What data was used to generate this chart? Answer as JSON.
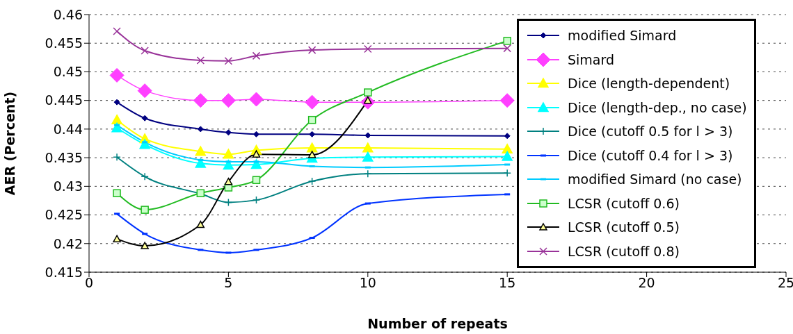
{
  "chart_data": {
    "type": "line",
    "xlabel": "Number of repeats",
    "ylabel": "AER (Percent)",
    "x": [
      1,
      2,
      4,
      5,
      6,
      8,
      10,
      15
    ],
    "xlim": [
      0,
      25
    ],
    "xticks": [
      0,
      5,
      10,
      15,
      20,
      25
    ],
    "ylim": [
      0.415,
      0.46
    ],
    "yticks": [
      0.415,
      0.42,
      0.425,
      0.43,
      0.435,
      0.44,
      0.445,
      0.45,
      0.455,
      0.46
    ],
    "grid": "y",
    "legend": "right",
    "line_style": "solid",
    "series": [
      {
        "name": "modified Simard",
        "color": "#000080",
        "marker": "diamond",
        "values": [
          0.4447,
          0.4419,
          0.44,
          0.4394,
          0.4391,
          0.4391,
          0.4389,
          0.4388
        ]
      },
      {
        "name": "Simard",
        "color": "#ff40ff",
        "marker": "diamond",
        "values": [
          0.4494,
          0.4467,
          0.445,
          0.445,
          0.4452,
          0.4447,
          0.4447,
          0.445
        ]
      },
      {
        "name": "Dice (length-dependent)",
        "color": "#ffff00",
        "marker": "triangle",
        "values": [
          0.4416,
          0.4383,
          0.4361,
          0.4356,
          0.4363,
          0.4367,
          0.4367,
          0.4365
        ]
      },
      {
        "name": "Dice (length-dep., no case)",
        "color": "#00ffff",
        "marker": "triangle",
        "values": [
          0.4402,
          0.4373,
          0.434,
          0.4337,
          0.4338,
          0.4349,
          0.4351,
          0.4352
        ]
      },
      {
        "name": "Dice (cutoff 0.5 for l > 3)",
        "color": "#008080",
        "marker": "cross",
        "values": [
          0.4351,
          0.4317,
          0.4287,
          0.4272,
          0.4276,
          0.4309,
          0.4322,
          0.4323
        ]
      },
      {
        "name": "Dice (cutoff 0.4 for l > 3)",
        "color": "#0033ff",
        "marker": "square",
        "values": [
          0.4252,
          0.4217,
          0.4189,
          0.4184,
          0.4189,
          0.421,
          0.427,
          0.4286
        ]
      },
      {
        "name": "modified Simard (no case)",
        "color": "#00ccff",
        "marker": "square",
        "values": [
          0.4407,
          0.4377,
          0.4346,
          0.4343,
          0.4343,
          0.4335,
          0.4333,
          0.4338
        ]
      },
      {
        "name": "LCSR (cutoff 0.6)",
        "color": "#22bb22",
        "marker": "square",
        "values": [
          0.4288,
          0.4259,
          0.4288,
          0.4298,
          0.4311,
          0.4416,
          0.4464,
          0.4554
        ]
      },
      {
        "name": "LCSR (cutoff 0.5)",
        "color": "#000000",
        "marker": "triangle",
        "values": [
          0.4208,
          0.4196,
          0.4233,
          0.4308,
          0.4356,
          0.4355,
          0.445,
          null
        ]
      },
      {
        "name": "LCSR (cutoff 0.8)",
        "color": "#993399",
        "marker": "cross",
        "values": [
          0.4571,
          0.4537,
          0.452,
          0.4519,
          0.4528,
          0.4538,
          0.454,
          0.4541
        ]
      }
    ]
  }
}
